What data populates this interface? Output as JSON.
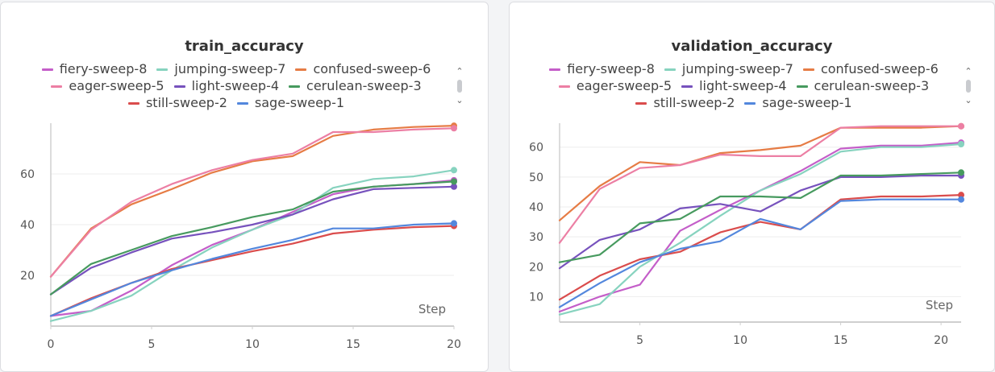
{
  "scroll_icons": {
    "up": "chevron-up-icon",
    "down": "chevron-down-icon"
  },
  "chart_data": [
    {
      "type": "line",
      "title": "train_accuracy",
      "xlabel": "Step",
      "ylabel": "",
      "xlim": [
        0,
        20
      ],
      "ylim": [
        0,
        80
      ],
      "xticks": [
        0,
        5,
        10,
        15,
        20
      ],
      "yticks": [
        20,
        40,
        60
      ],
      "grid": true,
      "legend": "top",
      "legend_rows": [
        [
          0,
          1,
          2
        ],
        [
          3,
          4,
          5
        ],
        [
          6,
          7
        ]
      ],
      "series": [
        {
          "name": "fiery-sweep-8",
          "color": "#c45ec9",
          "x": [
            0,
            2,
            4,
            6,
            8,
            10,
            12,
            14,
            16,
            18,
            20
          ],
          "y": [
            4,
            6,
            14,
            24,
            32,
            38,
            45,
            52,
            55,
            56,
            57.5
          ]
        },
        {
          "name": "jumping-sweep-7",
          "color": "#87d3bf",
          "x": [
            0,
            2,
            4,
            6,
            8,
            10,
            12,
            14,
            16,
            18,
            20
          ],
          "y": [
            2,
            6,
            12,
            22,
            31,
            38,
            44,
            54.5,
            58,
            59,
            61.5
          ]
        },
        {
          "name": "confused-sweep-6",
          "color": "#e67c45",
          "x": [
            0,
            2,
            4,
            6,
            8,
            10,
            12,
            14,
            16,
            18,
            20
          ],
          "y": [
            19.5,
            38.5,
            48,
            54,
            60.5,
            65,
            67,
            75,
            77.5,
            78.5,
            79
          ]
        },
        {
          "name": "eager-sweep-5",
          "color": "#ec7fa4",
          "x": [
            0,
            2,
            4,
            6,
            8,
            10,
            12,
            14,
            16,
            18,
            20
          ],
          "y": [
            19.5,
            38,
            49,
            56,
            61.5,
            65.5,
            68,
            76.5,
            76.5,
            77.5,
            78
          ]
        },
        {
          "name": "light-sweep-4",
          "color": "#7752bd",
          "x": [
            0,
            2,
            4,
            6,
            8,
            10,
            12,
            14,
            16,
            18,
            20
          ],
          "y": [
            12.5,
            23,
            29,
            34.5,
            37,
            40,
            44,
            50,
            54,
            54.5,
            55
          ]
        },
        {
          "name": "cerulean-sweep-3",
          "color": "#479a5f",
          "x": [
            0,
            2,
            4,
            6,
            8,
            10,
            12,
            14,
            16,
            18,
            20
          ],
          "y": [
            12.5,
            24.5,
            30,
            35.5,
            39,
            43,
            46,
            53,
            55,
            56,
            57
          ]
        },
        {
          "name": "still-sweep-2",
          "color": "#da4c4c",
          "x": [
            0,
            2,
            4,
            6,
            8,
            10,
            12,
            14,
            16,
            18,
            20
          ],
          "y": [
            4,
            11,
            17,
            22.5,
            26,
            29.5,
            32.5,
            36.5,
            38,
            39,
            39.5
          ]
        },
        {
          "name": "sage-sweep-1",
          "color": "#5387dd",
          "x": [
            0,
            2,
            4,
            6,
            8,
            10,
            12,
            14,
            16,
            18,
            20
          ],
          "y": [
            4,
            10.5,
            17,
            22,
            26.5,
            30.5,
            34,
            38.5,
            38.5,
            40,
            40.5
          ]
        }
      ]
    },
    {
      "type": "line",
      "title": "validation_accuracy",
      "xlabel": "Step",
      "ylabel": "",
      "xlim": [
        1,
        21
      ],
      "ylim": [
        1.5,
        68
      ],
      "xticks": [
        5,
        10,
        15,
        20
      ],
      "yticks": [
        10,
        20,
        30,
        40,
        50,
        60
      ],
      "grid": true,
      "legend": "top",
      "legend_rows": [
        [
          0,
          1,
          2
        ],
        [
          3,
          4,
          5
        ],
        [
          6,
          7
        ]
      ],
      "series": [
        {
          "name": "fiery-sweep-8",
          "color": "#c45ec9",
          "x": [
            1,
            3,
            5,
            7,
            9,
            11,
            13,
            15,
            17,
            19,
            21
          ],
          "y": [
            5,
            10,
            14,
            32,
            39,
            45.5,
            52,
            59.5,
            60.5,
            60.5,
            61.5
          ]
        },
        {
          "name": "jumping-sweep-7",
          "color": "#87d3bf",
          "x": [
            1,
            3,
            5,
            7,
            9,
            11,
            13,
            15,
            17,
            19,
            21
          ],
          "y": [
            4,
            7.5,
            20,
            28,
            37,
            45.5,
            51,
            58.5,
            60,
            60,
            61
          ]
        },
        {
          "name": "confused-sweep-6",
          "color": "#e67c45",
          "x": [
            1,
            3,
            5,
            7,
            9,
            11,
            13,
            15,
            17,
            19,
            21
          ],
          "y": [
            35.5,
            47,
            55,
            54,
            58,
            59,
            60.5,
            66.5,
            66.5,
            66.5,
            67
          ]
        },
        {
          "name": "eager-sweep-5",
          "color": "#ec7fa4",
          "x": [
            1,
            3,
            5,
            7,
            9,
            11,
            13,
            15,
            17,
            19,
            21
          ],
          "y": [
            28,
            46,
            53,
            54,
            57.5,
            57,
            57,
            66.5,
            67,
            67,
            67
          ]
        },
        {
          "name": "light-sweep-4",
          "color": "#7752bd",
          "x": [
            1,
            3,
            5,
            7,
            9,
            11,
            13,
            15,
            17,
            19,
            21
          ],
          "y": [
            19.5,
            29,
            32.5,
            39.5,
            41,
            38.5,
            45.5,
            50,
            50,
            50.5,
            50.5
          ]
        },
        {
          "name": "cerulean-sweep-3",
          "color": "#479a5f",
          "x": [
            1,
            3,
            5,
            7,
            9,
            11,
            13,
            15,
            17,
            19,
            21
          ],
          "y": [
            21.5,
            24,
            34.5,
            36,
            43.5,
            43.5,
            43,
            50.5,
            50.5,
            51,
            51.5
          ]
        },
        {
          "name": "still-sweep-2",
          "color": "#da4c4c",
          "x": [
            1,
            3,
            5,
            7,
            9,
            11,
            13,
            15,
            17,
            19,
            21
          ],
          "y": [
            9,
            17,
            22.5,
            25,
            31.5,
            35,
            32.5,
            42.5,
            43.5,
            43.5,
            44
          ]
        },
        {
          "name": "sage-sweep-1",
          "color": "#5387dd",
          "x": [
            1,
            3,
            5,
            7,
            9,
            11,
            13,
            15,
            17,
            19,
            21
          ],
          "y": [
            6.5,
            14.5,
            21.5,
            26,
            28.5,
            36,
            32.5,
            42,
            42.5,
            42.5,
            42.5
          ]
        }
      ]
    }
  ]
}
